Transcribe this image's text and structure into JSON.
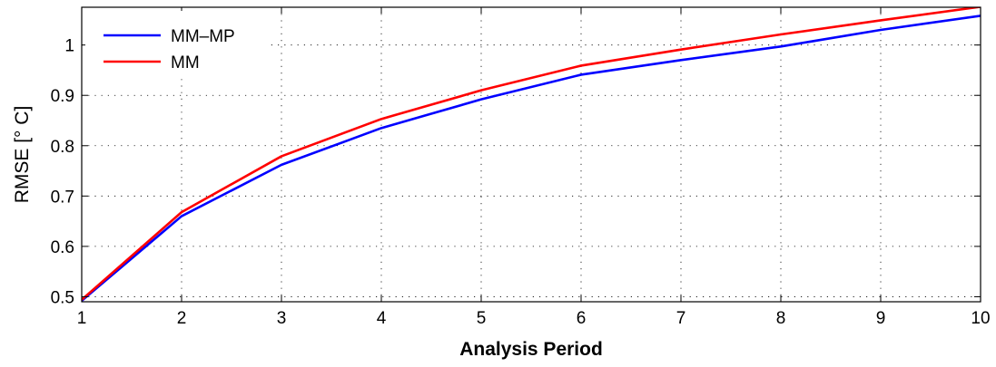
{
  "chart_data": {
    "type": "line",
    "title": "",
    "xlabel": "Analysis Period",
    "ylabel": "RMSE [° C]",
    "xlim": [
      1,
      10
    ],
    "ylim": [
      0.49,
      1.075
    ],
    "x_ticks": [
      1,
      2,
      3,
      4,
      5,
      6,
      7,
      8,
      9,
      10
    ],
    "x_tick_labels": [
      "1",
      "2",
      "3",
      "4",
      "5",
      "6",
      "7",
      "8",
      "9",
      "10"
    ],
    "y_ticks": [
      0.5,
      0.6,
      0.7,
      0.8,
      0.9,
      1.0
    ],
    "y_tick_labels": [
      "0.5",
      "0.6",
      "0.7",
      "0.8",
      "0.9",
      "1"
    ],
    "grid": true,
    "legend_position": "top-left",
    "x": [
      1,
      2,
      3,
      4,
      5,
      6,
      7,
      8,
      9,
      10
    ],
    "series": [
      {
        "name": "MM–MP",
        "color": "#0000ff",
        "values": [
          0.492,
          0.66,
          0.762,
          0.835,
          0.892,
          0.941,
          0.97,
          0.997,
          1.03,
          1.058
        ]
      },
      {
        "name": "MM",
        "color": "#ff0000",
        "values": [
          0.494,
          0.668,
          0.779,
          0.853,
          0.91,
          0.959,
          0.991,
          1.021,
          1.049,
          1.076
        ]
      }
    ]
  }
}
